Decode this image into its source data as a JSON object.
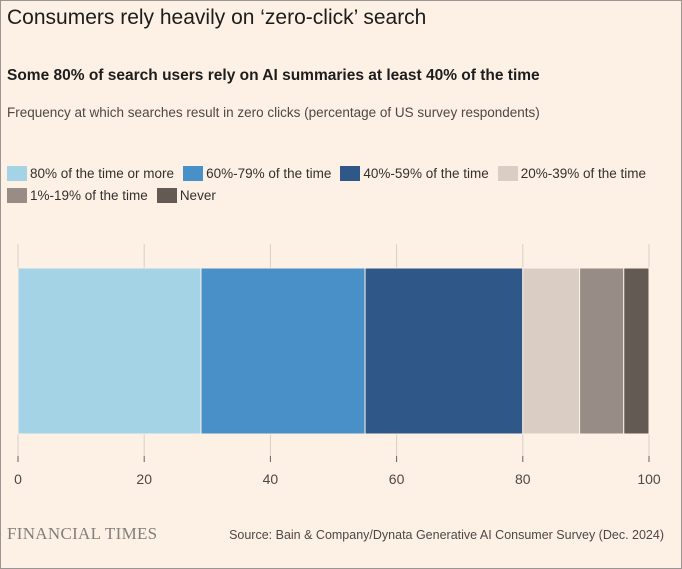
{
  "header": {
    "title": "Consumers rely heavily on ‘zero-click’ search",
    "subtitle": "Some 80% of search users rely on AI summaries at least 40% of the time",
    "description": "Frequency at which searches result in zero clicks (percentage of US survey respondents)"
  },
  "footer": {
    "brand": "FINANCIAL TIMES",
    "source": "Source: Bain & Company/Dynata Generative AI Consumer Survey (Dec. 2024)"
  },
  "chart_data": {
    "type": "bar",
    "orientation": "horizontal",
    "stacked": true,
    "title": "Consumers rely heavily on ‘zero-click’ search",
    "subtitle": "Some 80% of search users rely on AI summaries at least 40% of the time",
    "xlabel": "",
    "ylabel": "",
    "xlim": [
      0,
      100
    ],
    "xticks": [
      0,
      20,
      40,
      60,
      80,
      100
    ],
    "grid": true,
    "legend_position": "top",
    "series": [
      {
        "name": "80% of the time or more",
        "value": 29,
        "color": "#a3d3e5"
      },
      {
        "name": "60%-79% of the time",
        "value": 26,
        "color": "#4a90c8"
      },
      {
        "name": "40%-59% of the time",
        "value": 25,
        "color": "#2f5888"
      },
      {
        "name": "20%-39% of the time",
        "value": 9,
        "color": "#dacdc4"
      },
      {
        "name": "1%-19% of the time",
        "value": 7,
        "color": "#988d86"
      },
      {
        "name": "Never",
        "value": 4,
        "color": "#645a54"
      }
    ]
  }
}
